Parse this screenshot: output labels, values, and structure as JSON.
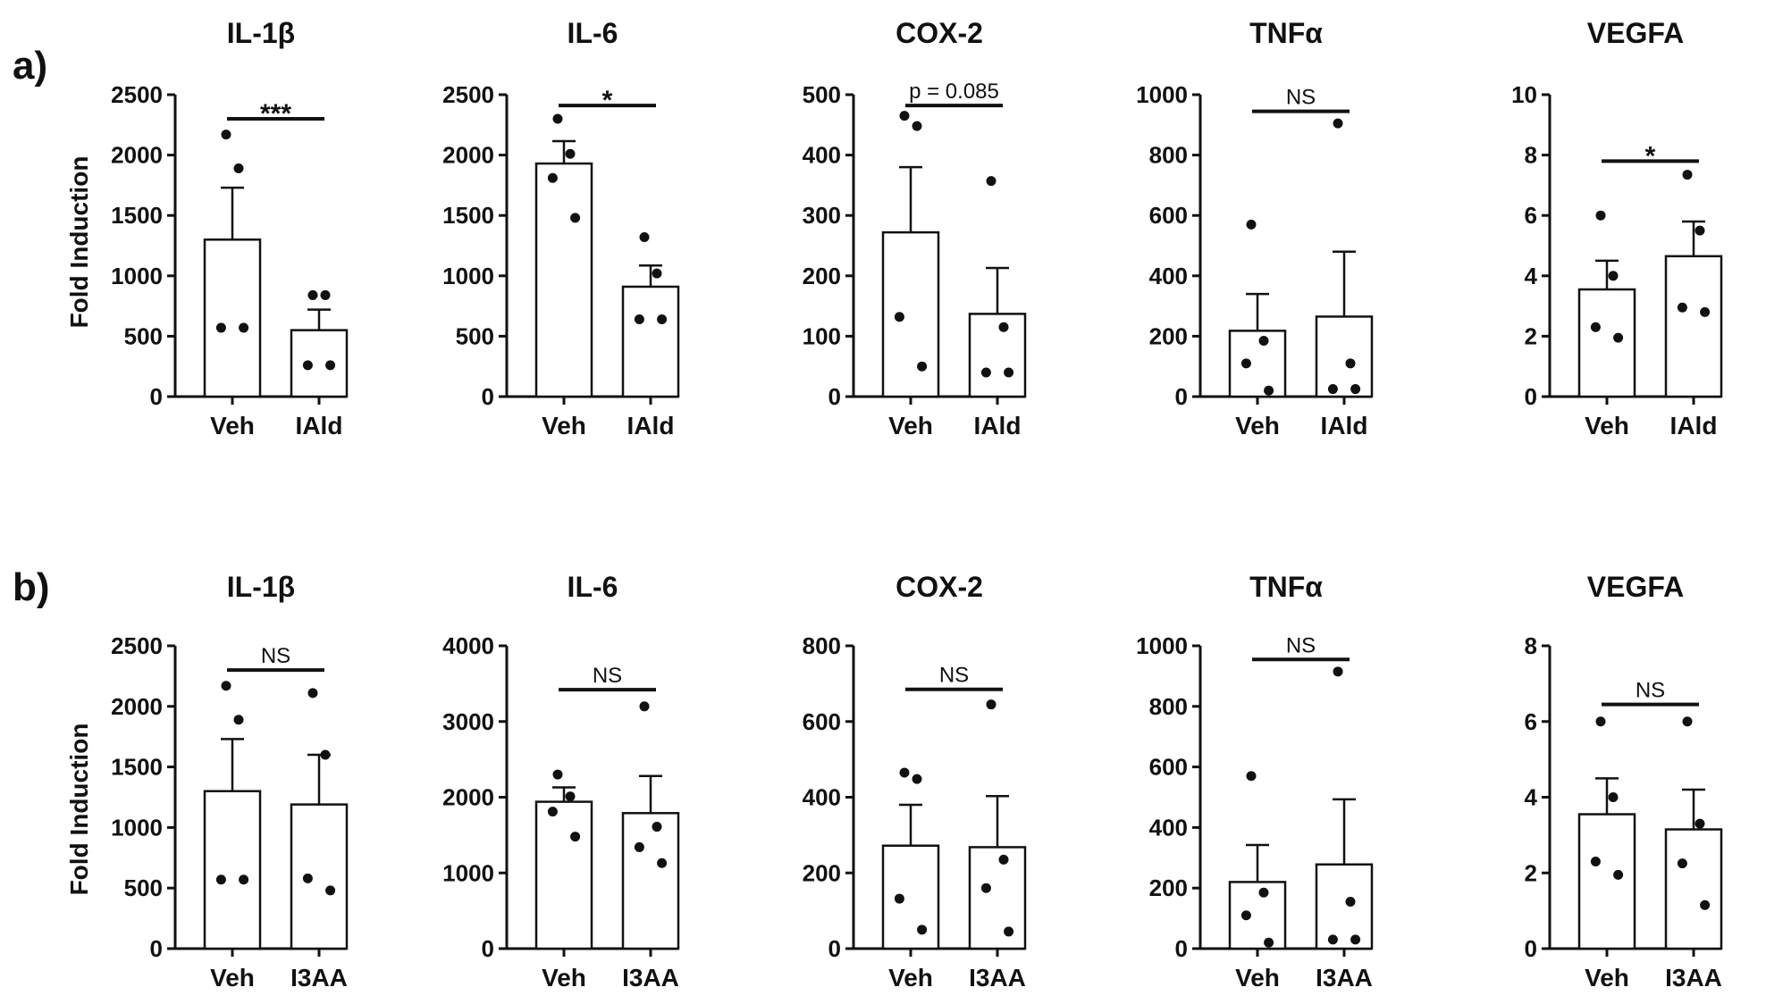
{
  "panels": [
    {
      "letter": "a)",
      "ylabel": "Fold Induction"
    },
    {
      "letter": "b)",
      "ylabel": "Fold Induction"
    }
  ],
  "chart_data": [
    {
      "type": "bar",
      "panel": "a)",
      "title": "IL-1β",
      "categories": [
        "Veh",
        "IAld"
      ],
      "values": [
        1300,
        550
      ],
      "sem": [
        430,
        170
      ],
      "points": [
        [
          2170,
          1890,
          570,
          570
        ],
        [
          840,
          840,
          260,
          260
        ]
      ],
      "ylim": [
        0,
        2500
      ],
      "yticks": [
        0,
        500,
        1000,
        1500,
        2000,
        2500
      ],
      "significance": "***",
      "bar_y": 2300
    },
    {
      "type": "bar",
      "panel": "a)",
      "title": "IL-6",
      "categories": [
        "Veh",
        "IAld"
      ],
      "values": [
        1930,
        910
      ],
      "sem": [
        185,
        175
      ],
      "points": [
        [
          2300,
          2010,
          1810,
          1480
        ],
        [
          1320,
          1020,
          640,
          640
        ]
      ],
      "ylim": [
        0,
        2500
      ],
      "yticks": [
        0,
        500,
        1000,
        1500,
        2000,
        2500
      ],
      "significance": "*",
      "bar_y": 2410
    },
    {
      "type": "bar",
      "panel": "a)",
      "title": "COX-2",
      "categories": [
        "Veh",
        "IAld"
      ],
      "values": [
        272,
        137
      ],
      "sem": [
        108,
        76
      ],
      "points": [
        [
          465,
          448,
          132,
          50
        ],
        [
          357,
          115,
          40,
          40
        ]
      ],
      "ylim": [
        0,
        500
      ],
      "yticks": [
        0,
        100,
        200,
        300,
        400,
        500
      ],
      "significance": "p = 0.085",
      "bar_y": 482
    },
    {
      "type": "bar",
      "panel": "a)",
      "title": "TNFα",
      "categories": [
        "Veh",
        "IAld"
      ],
      "values": [
        218,
        265
      ],
      "sem": [
        122,
        215
      ],
      "points": [
        [
          570,
          185,
          110,
          20
        ],
        [
          905,
          110,
          25,
          25
        ]
      ],
      "ylim": [
        0,
        1000
      ],
      "yticks": [
        0,
        200,
        400,
        600,
        800,
        1000
      ],
      "significance": "NS",
      "bar_y": 945
    },
    {
      "type": "bar",
      "panel": "a)",
      "title": "VEGFA",
      "categories": [
        "Veh",
        "IAld"
      ],
      "values": [
        3.55,
        4.65
      ],
      "sem": [
        0.95,
        1.15
      ],
      "points": [
        [
          6.0,
          4.0,
          2.3,
          1.95
        ],
        [
          7.35,
          5.5,
          2.95,
          2.8
        ]
      ],
      "ylim": [
        0,
        10
      ],
      "yticks": [
        0,
        2,
        4,
        6,
        8,
        10
      ],
      "significance": "*",
      "bar_y": 7.8
    },
    {
      "type": "bar",
      "panel": "b)",
      "title": "IL-1β",
      "categories": [
        "Veh",
        "I3AA"
      ],
      "values": [
        1300,
        1190
      ],
      "sem": [
        430,
        410
      ],
      "points": [
        [
          2170,
          1890,
          570,
          570
        ],
        [
          2110,
          1600,
          580,
          480
        ]
      ],
      "ylim": [
        0,
        2500
      ],
      "yticks": [
        0,
        500,
        1000,
        1500,
        2000,
        2500
      ],
      "significance": "NS",
      "bar_y": 2300
    },
    {
      "type": "bar",
      "panel": "b)",
      "title": "IL-6",
      "categories": [
        "Veh",
        "I3AA"
      ],
      "values": [
        1940,
        1790
      ],
      "sem": [
        190,
        490
      ],
      "points": [
        [
          2300,
          2010,
          1810,
          1480
        ],
        [
          3200,
          1610,
          1340,
          1130
        ]
      ],
      "ylim": [
        0,
        4000
      ],
      "yticks": [
        0,
        1000,
        2000,
        3000,
        4000
      ],
      "significance": "NS",
      "bar_y": 3420
    },
    {
      "type": "bar",
      "panel": "b)",
      "title": "COX-2",
      "categories": [
        "Veh",
        "I3AA"
      ],
      "values": [
        272,
        268
      ],
      "sem": [
        108,
        135
      ],
      "points": [
        [
          465,
          448,
          132,
          50
        ],
        [
          645,
          235,
          160,
          45
        ]
      ],
      "ylim": [
        0,
        800
      ],
      "yticks": [
        0,
        200,
        400,
        600,
        800
      ],
      "significance": "NS",
      "bar_y": 685
    },
    {
      "type": "bar",
      "panel": "b)",
      "title": "TNFα",
      "categories": [
        "Veh",
        "I3AA"
      ],
      "values": [
        220,
        278
      ],
      "sem": [
        122,
        215
      ],
      "points": [
        [
          570,
          185,
          110,
          20
        ],
        [
          915,
          155,
          30,
          30
        ]
      ],
      "ylim": [
        0,
        1000
      ],
      "yticks": [
        0,
        200,
        400,
        600,
        800,
        1000
      ],
      "significance": "NS",
      "bar_y": 955
    },
    {
      "type": "bar",
      "panel": "b)",
      "title": "VEGFA",
      "categories": [
        "Veh",
        "I3AA"
      ],
      "values": [
        3.55,
        3.15
      ],
      "sem": [
        0.95,
        1.05
      ],
      "points": [
        [
          6.0,
          4.0,
          2.3,
          1.95
        ],
        [
          6.0,
          3.3,
          2.25,
          1.15
        ]
      ],
      "ylim": [
        0,
        8
      ],
      "yticks": [
        0,
        2,
        4,
        6,
        8
      ],
      "significance": "NS",
      "bar_y": 6.45
    }
  ]
}
